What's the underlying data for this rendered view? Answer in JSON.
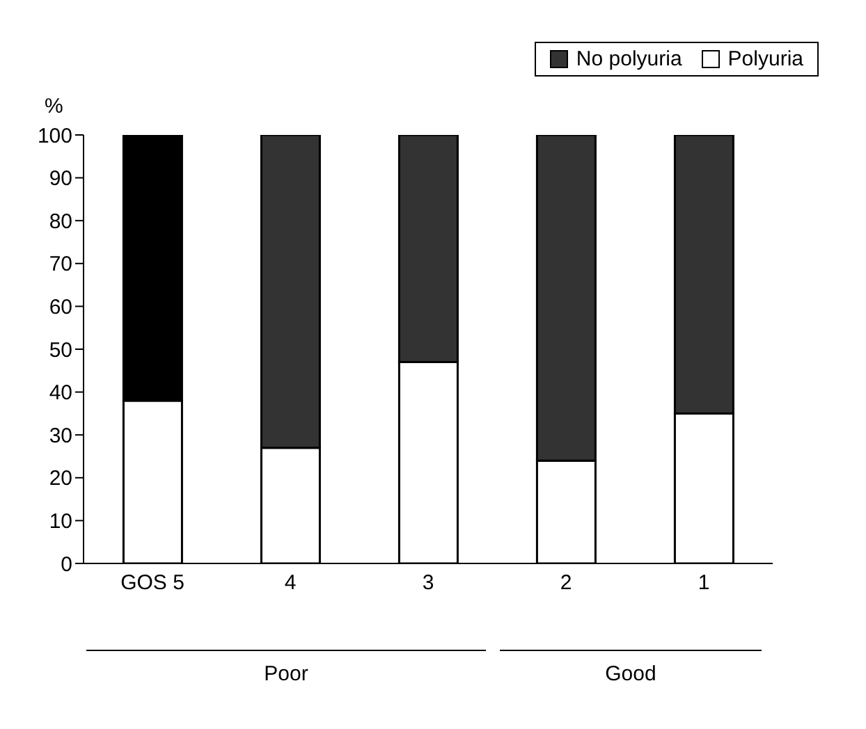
{
  "chart_data": {
    "type": "bar",
    "stacked": true,
    "ylabel": "%",
    "categories": [
      "GOS 5",
      "4",
      "3",
      "2",
      "1"
    ],
    "series": [
      {
        "name": "Polyuria",
        "color": "#ffffff",
        "values": [
          38,
          27,
          47,
          24,
          35
        ]
      },
      {
        "name": "No polyuria",
        "color": "#333333",
        "colors": [
          "#000000",
          "#333333",
          "#333333",
          "#333333",
          "#333333"
        ],
        "values": [
          62,
          73,
          53,
          76,
          65
        ]
      }
    ],
    "ylim": [
      0,
      100
    ],
    "yticks": [
      0,
      10,
      20,
      30,
      40,
      50,
      60,
      70,
      80,
      90,
      100
    ],
    "grid": false,
    "legend": "top right",
    "annotations": [
      "Poor",
      "Good"
    ]
  }
}
